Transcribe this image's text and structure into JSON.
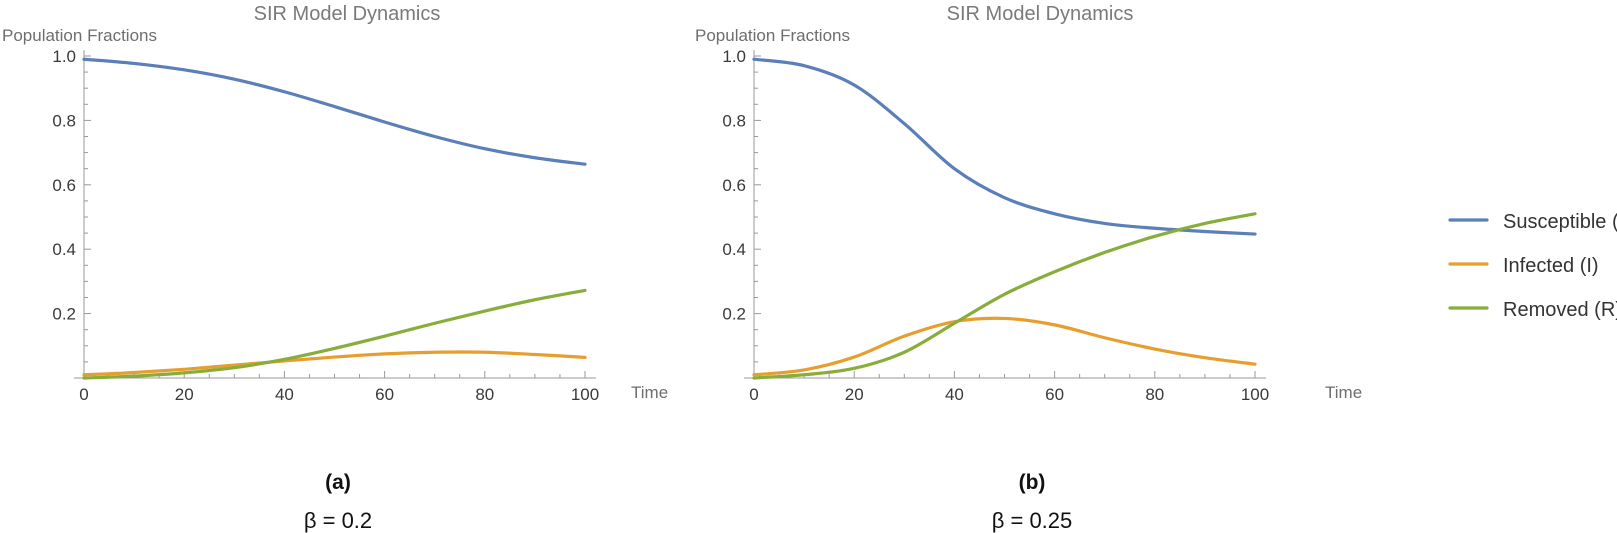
{
  "chart_data": [
    {
      "type": "line",
      "title": "SIR Model Dynamics",
      "xlabel": "Time",
      "ylabel": "Population Fractions",
      "panel_label": "(a)",
      "caption": "β = 0.2",
      "xlim": [
        0,
        100
      ],
      "ylim": [
        0,
        1.0
      ],
      "xticks": [
        0,
        20,
        40,
        60,
        80,
        100
      ],
      "yticks": [
        0.2,
        0.4,
        0.6,
        0.8,
        1.0
      ],
      "x": [
        0,
        10,
        20,
        30,
        40,
        50,
        60,
        70,
        80,
        90,
        100
      ],
      "series": [
        {
          "name": "Susceptible (S)",
          "values": [
            0.99,
            0.977,
            0.957,
            0.928,
            0.889,
            0.843,
            0.795,
            0.75,
            0.712,
            0.684,
            0.664
          ]
        },
        {
          "name": "Infected (I)",
          "values": [
            0.01,
            0.017,
            0.027,
            0.04,
            0.053,
            0.065,
            0.075,
            0.08,
            0.08,
            0.073,
            0.064
          ]
        },
        {
          "name": "Removed (R)",
          "values": [
            0.0,
            0.006,
            0.016,
            0.032,
            0.058,
            0.092,
            0.13,
            0.17,
            0.208,
            0.243,
            0.272
          ]
        }
      ],
      "grid": false,
      "legend": "right"
    },
    {
      "type": "line",
      "title": "SIR Model Dynamics",
      "xlabel": "Time",
      "ylabel": "Population Fractions",
      "panel_label": "(b)",
      "caption": "β = 0.25",
      "xlim": [
        0,
        100
      ],
      "ylim": [
        0,
        1.0
      ],
      "xticks": [
        0,
        20,
        40,
        60,
        80,
        100
      ],
      "yticks": [
        0.2,
        0.4,
        0.6,
        0.8,
        1.0
      ],
      "x": [
        0,
        10,
        20,
        30,
        40,
        50,
        60,
        70,
        80,
        90,
        100
      ],
      "series": [
        {
          "name": "Susceptible (S)",
          "values": [
            0.99,
            0.97,
            0.91,
            0.79,
            0.65,
            0.56,
            0.51,
            0.48,
            0.465,
            0.455,
            0.447
          ]
        },
        {
          "name": "Infected (I)",
          "values": [
            0.01,
            0.025,
            0.065,
            0.13,
            0.175,
            0.185,
            0.165,
            0.125,
            0.09,
            0.063,
            0.043
          ]
        },
        {
          "name": "Removed (R)",
          "values": [
            0.0,
            0.01,
            0.03,
            0.08,
            0.17,
            0.26,
            0.33,
            0.39,
            0.44,
            0.48,
            0.51
          ]
        }
      ],
      "grid": false,
      "legend": "right"
    }
  ],
  "legend": {
    "items": [
      {
        "label": "Susceptible (S)",
        "color": "#5b7fb8"
      },
      {
        "label": "Infected (I)",
        "color": "#e69f2f"
      },
      {
        "label": "Removed (R)",
        "color": "#88ad3a"
      }
    ]
  },
  "colors": {
    "axis": "#9a9a9a",
    "susceptible": "#5b7fb8",
    "infected": "#e69f2f",
    "removed": "#88ad3a"
  }
}
